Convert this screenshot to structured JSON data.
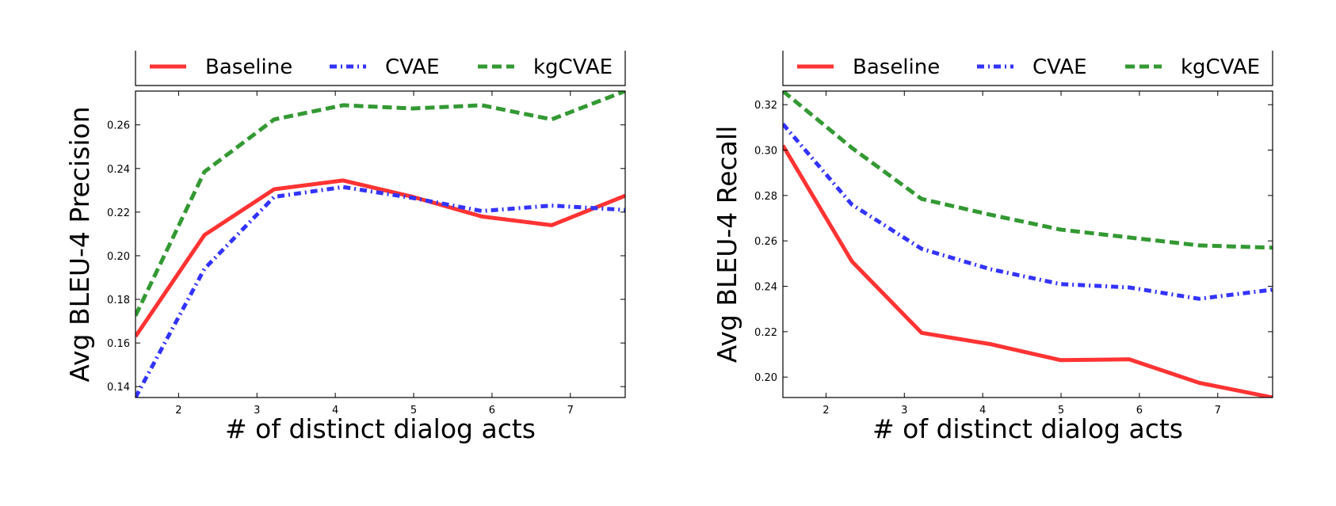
{
  "chart_data": [
    {
      "type": "line",
      "xlabel": "# of distinct dialog acts",
      "ylabel": "Avg BLEU-4 Precision",
      "xlim": [
        1.45,
        7.7
      ],
      "ylim": [
        0.135,
        0.2755
      ],
      "xticks": [
        2,
        3,
        4,
        5,
        6,
        7
      ],
      "yticks": [
        0.14,
        0.16,
        0.18,
        0.2,
        0.22,
        0.24,
        0.26
      ],
      "ytick_labels": [
        "0.14",
        "0.16",
        "0.18",
        "0.20",
        "0.22",
        "0.24",
        "0.26"
      ],
      "legend_position": "top (above plot, boxed)",
      "grid": false,
      "series": [
        {
          "name": "Baseline",
          "color": "#ff3333",
          "style": "solid",
          "x": [
            1.45,
            2.33,
            3.22,
            4.1,
            4.99,
            5.87,
            6.76,
            7.7
          ],
          "y": [
            0.163,
            0.2095,
            0.2305,
            0.2345,
            0.227,
            0.218,
            0.214,
            0.2275
          ]
        },
        {
          "name": "CVAE",
          "color": "#3333ff",
          "style": "dashdot",
          "x": [
            1.45,
            2.33,
            3.22,
            4.1,
            4.99,
            5.87,
            6.76,
            7.7
          ],
          "y": [
            0.135,
            0.194,
            0.227,
            0.2315,
            0.2265,
            0.2205,
            0.223,
            0.221
          ]
        },
        {
          "name": "kgCVAE",
          "color": "#339933",
          "style": "dashed",
          "x": [
            1.45,
            2.33,
            3.22,
            4.1,
            4.99,
            5.87,
            6.76,
            7.7
          ],
          "y": [
            0.1725,
            0.2385,
            0.2625,
            0.269,
            0.2675,
            0.269,
            0.2625,
            0.2755
          ]
        }
      ]
    },
    {
      "type": "line",
      "xlabel": "# of distinct dialog acts",
      "ylabel": "Avg BLEU-4 Recall",
      "xlim": [
        1.45,
        7.7
      ],
      "ylim": [
        0.191,
        0.326
      ],
      "xticks": [
        2,
        3,
        4,
        5,
        6,
        7
      ],
      "yticks": [
        0.2,
        0.22,
        0.24,
        0.26,
        0.28,
        0.3,
        0.32
      ],
      "ytick_labels": [
        "0.20",
        "0.22",
        "0.24",
        "0.26",
        "0.28",
        "0.30",
        "0.32"
      ],
      "legend_position": "top (above plot, boxed)",
      "grid": false,
      "series": [
        {
          "name": "Baseline",
          "color": "#ff3333",
          "style": "solid",
          "x": [
            1.45,
            2.33,
            3.22,
            4.1,
            4.99,
            5.87,
            6.76,
            7.7
          ],
          "y": [
            0.302,
            0.251,
            0.2195,
            0.2145,
            0.2075,
            0.2078,
            0.1975,
            0.191
          ]
        },
        {
          "name": "CVAE",
          "color": "#3333ff",
          "style": "dashdot",
          "x": [
            1.45,
            2.33,
            3.22,
            4.1,
            4.99,
            5.87,
            6.76,
            7.7
          ],
          "y": [
            0.3115,
            0.276,
            0.2565,
            0.2475,
            0.241,
            0.2395,
            0.2345,
            0.2385
          ]
        },
        {
          "name": "kgCVAE",
          "color": "#339933",
          "style": "dashed",
          "x": [
            1.45,
            2.33,
            3.22,
            4.1,
            4.99,
            5.87,
            6.76,
            7.7
          ],
          "y": [
            0.326,
            0.301,
            0.2785,
            0.2715,
            0.265,
            0.2615,
            0.258,
            0.257
          ]
        }
      ]
    }
  ]
}
